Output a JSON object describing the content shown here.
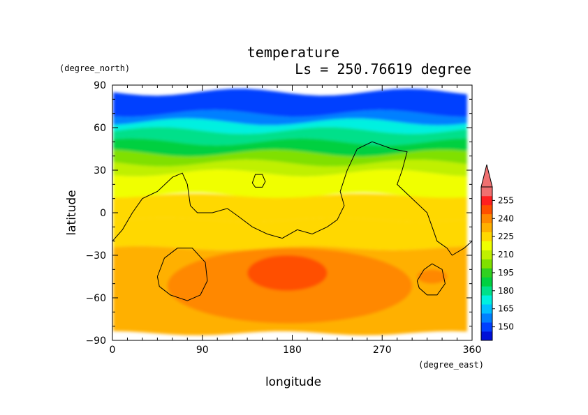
{
  "chart_data": {
    "type": "heatmap",
    "title": "temperature",
    "subtitle": "Ls = 250.76619 degree",
    "xlabel": "longitude",
    "ylabel": "latitude",
    "x_unit": "(degree_east)",
    "y_unit": "(degree_north)",
    "xlim": [
      0,
      360
    ],
    "ylim": [
      -90,
      90
    ],
    "x_ticks": [
      0,
      90,
      180,
      270,
      360
    ],
    "y_ticks": [
      90,
      60,
      30,
      0,
      -30,
      -60,
      -90
    ],
    "x_tick_labels": [
      "0",
      "90",
      "180",
      "270",
      "360"
    ],
    "y_tick_labels": [
      "90",
      "60",
      "30",
      "0",
      "−30",
      "−60",
      "−90"
    ],
    "colorbar": {
      "labels": [
        "150",
        "165",
        "180",
        "195",
        "210",
        "225",
        "240",
        "255"
      ],
      "colors": [
        "#0010d8",
        "#0040ff",
        "#0080ff",
        "#00c0ff",
        "#00f0e0",
        "#00e08a",
        "#00d040",
        "#30d020",
        "#80e000",
        "#c0f000",
        "#f0ff00",
        "#ffd800",
        "#ffb000",
        "#ff8800",
        "#ff5000",
        "#ff2020",
        "#f07070"
      ],
      "overflow_color": "#f07070"
    },
    "field_bands": [
      {
        "lat_top": 85,
        "lat_bottom": 70,
        "temp": 150
      },
      {
        "lat_top": 70,
        "lat_bottom": 64,
        "temp": 160
      },
      {
        "lat_top": 64,
        "lat_bottom": 58,
        "temp": 170
      },
      {
        "lat_top": 58,
        "lat_bottom": 50,
        "temp": 180
      },
      {
        "lat_top": 50,
        "lat_bottom": 42,
        "temp": 190
      },
      {
        "lat_top": 42,
        "lat_bottom": 35,
        "temp": 200
      },
      {
        "lat_top": 35,
        "lat_bottom": 28,
        "temp": 210
      },
      {
        "lat_top": 28,
        "lat_bottom": 12,
        "temp": 215
      },
      {
        "lat_top": 12,
        "lat_bottom": -5,
        "temp": 222
      },
      {
        "lat_top": -5,
        "lat_bottom": -25,
        "temp": 226
      },
      {
        "lat_top": -25,
        "lat_bottom": -85,
        "temp": 230
      }
    ],
    "warm_regions": [
      {
        "lon": [
          55,
          300
        ],
        "lat": [
          -25,
          -78
        ],
        "temp": 236
      },
      {
        "lon": [
          135,
          215
        ],
        "lat": [
          -30,
          -55
        ],
        "temp": 243
      },
      {
        "lon": [
          305,
          335
        ],
        "lat": [
          -40,
          -50
        ],
        "temp": 240
      }
    ],
    "contours": [
      {
        "points": [
          [
            0,
            -20
          ],
          [
            10,
            -12
          ],
          [
            20,
            0
          ],
          [
            30,
            10
          ],
          [
            45,
            15
          ],
          [
            60,
            25
          ],
          [
            70,
            28
          ],
          [
            75,
            20
          ],
          [
            78,
            5
          ],
          [
            85,
            0
          ],
          [
            100,
            0
          ],
          [
            115,
            3
          ],
          [
            125,
            -2
          ],
          [
            140,
            -10
          ],
          [
            155,
            -15
          ],
          [
            170,
            -18
          ],
          [
            185,
            -12
          ],
          [
            200,
            -15
          ],
          [
            215,
            -10
          ],
          [
            225,
            -5
          ],
          [
            232,
            5
          ],
          [
            228,
            15
          ],
          [
            235,
            30
          ],
          [
            245,
            45
          ],
          [
            260,
            50
          ],
          [
            280,
            45
          ],
          [
            295,
            43
          ],
          [
            290,
            30
          ],
          [
            285,
            20
          ],
          [
            300,
            10
          ],
          [
            315,
            0
          ],
          [
            320,
            -10
          ],
          [
            325,
            -20
          ],
          [
            335,
            -25
          ],
          [
            340,
            -30
          ],
          [
            352,
            -25
          ],
          [
            360,
            -20
          ]
        ]
      },
      {
        "points": [
          [
            45,
            -45
          ],
          [
            52,
            -32
          ],
          [
            65,
            -25
          ],
          [
            80,
            -25
          ],
          [
            93,
            -35
          ],
          [
            95,
            -48
          ],
          [
            88,
            -58
          ],
          [
            75,
            -62
          ],
          [
            58,
            -58
          ],
          [
            47,
            -52
          ],
          [
            45,
            -45
          ]
        ]
      },
      {
        "points": [
          [
            305,
            -48
          ],
          [
            312,
            -40
          ],
          [
            320,
            -36
          ],
          [
            330,
            -40
          ],
          [
            333,
            -50
          ],
          [
            325,
            -58
          ],
          [
            315,
            -58
          ],
          [
            307,
            -53
          ],
          [
            305,
            -48
          ]
        ]
      },
      {
        "points": [
          [
            140,
            21
          ],
          [
            143,
            27
          ],
          [
            150,
            27
          ],
          [
            153,
            22
          ],
          [
            150,
            18
          ],
          [
            143,
            18
          ],
          [
            140,
            21
          ]
        ]
      }
    ]
  }
}
